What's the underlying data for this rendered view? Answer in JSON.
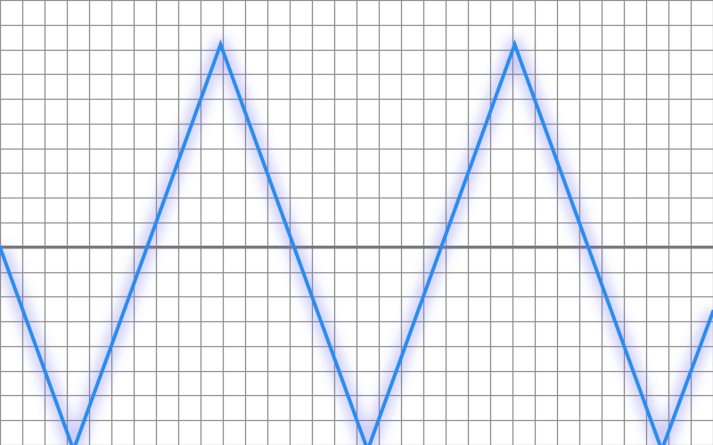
{
  "chart_data": {
    "type": "line",
    "title": "",
    "xlabel": "",
    "ylabel": "",
    "grid": true,
    "legend": "none",
    "colors": {
      "background": "#ffffff",
      "grid": "#8c8c8c",
      "baseline": "#7a7a7a",
      "line": "#2a8cf0",
      "glow": "#6a6ae8"
    },
    "xlim": [
      0,
      32
    ],
    "ylim": [
      -8,
      10
    ],
    "series": [
      {
        "name": "",
        "points": [
          [
            0,
            0
          ],
          [
            3.3,
            -8.2
          ],
          [
            9.9,
            8.2
          ],
          [
            16.5,
            -8.2
          ],
          [
            23.1,
            8.2
          ],
          [
            29.7,
            -8.2
          ],
          [
            32,
            -2.6
          ]
        ]
      }
    ]
  }
}
